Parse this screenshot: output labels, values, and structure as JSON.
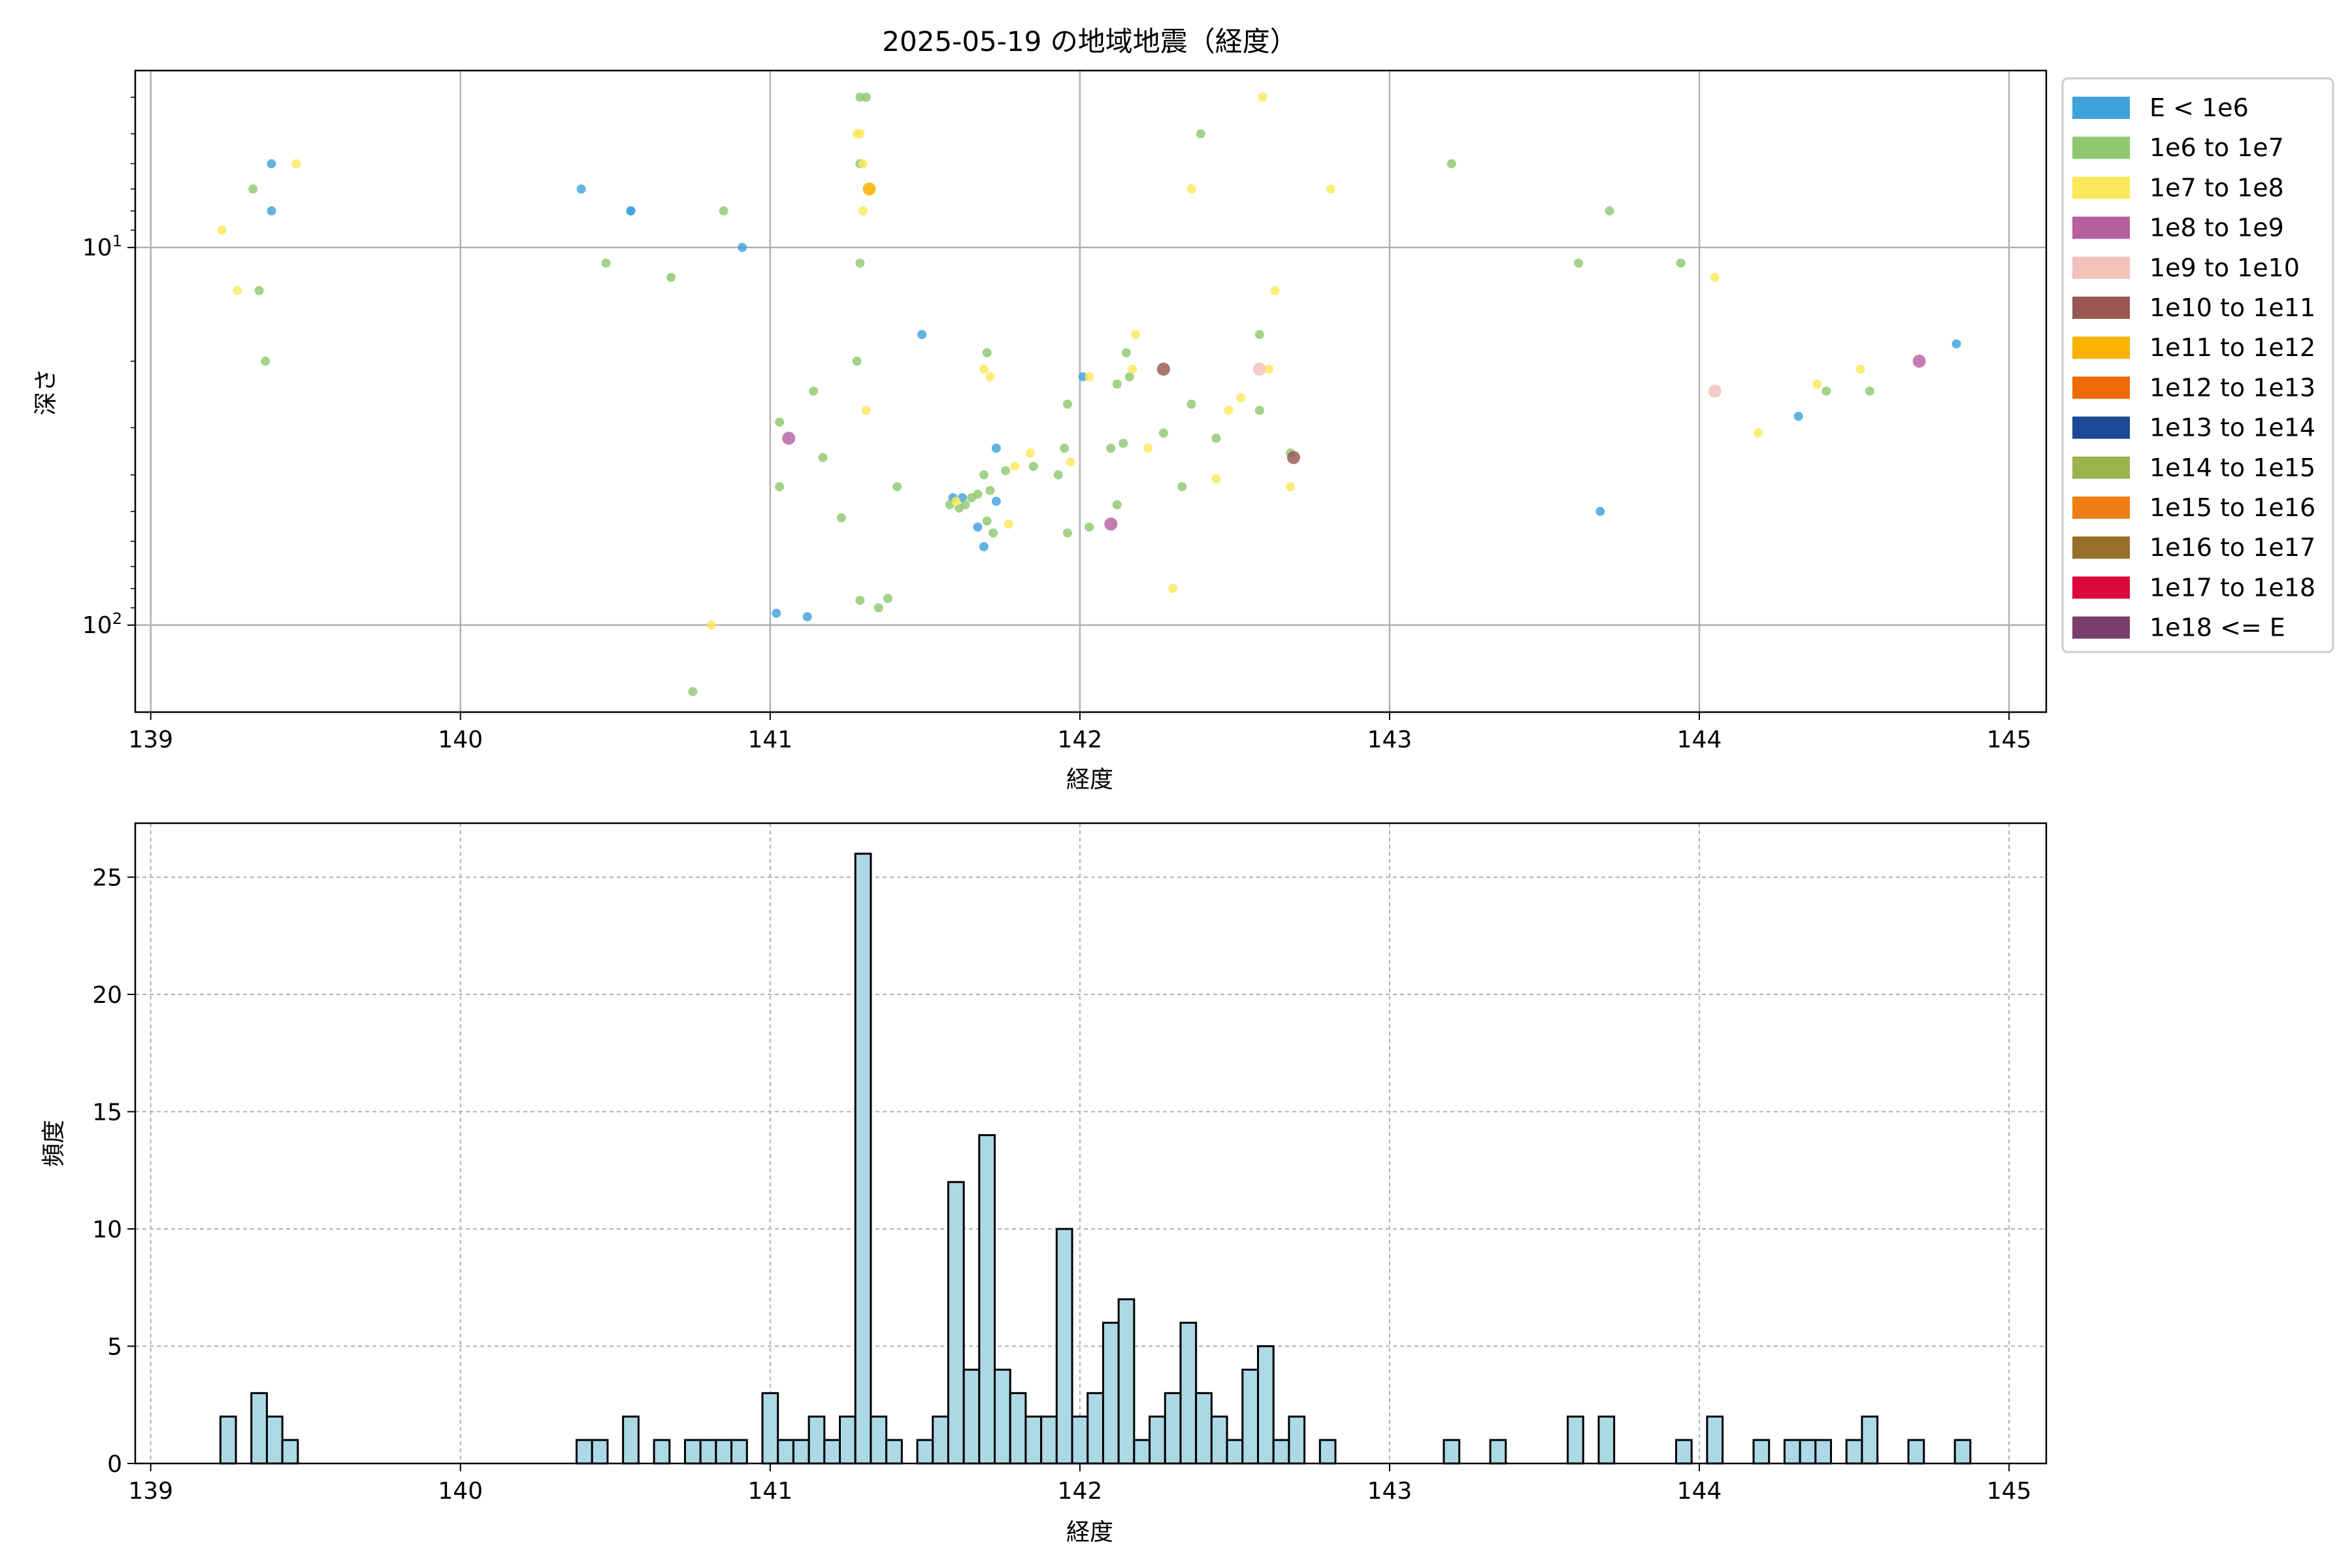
{
  "title": "2025-05-19 の地域地震（経度）",
  "legend": {
    "placement": "right-outside",
    "entries": [
      {
        "label": "E < 1e6",
        "color": "#3fa2db"
      },
      {
        "label": "1e6 to 1e7",
        "color": "#8fc870"
      },
      {
        "label": "1e7 to 1e8",
        "color": "#fbe85a"
      },
      {
        "label": "1e8 to 1e9",
        "color": "#b6609f"
      },
      {
        "label": "1e9 to 1e10",
        "color": "#f4c1bb"
      },
      {
        "label": "1e10 to 1e11",
        "color": "#985750"
      },
      {
        "label": "1e11 to 1e12",
        "color": "#f7b202"
      },
      {
        "label": "1e12 to 1e13",
        "color": "#ee6a0a"
      },
      {
        "label": "1e13 to 1e14",
        "color": "#1c4896"
      },
      {
        "label": "1e14 to 1e15",
        "color": "#9db14f"
      },
      {
        "label": "1e15 to 1e16",
        "color": "#ef7d13"
      },
      {
        "label": "1e16 to 1e17",
        "color": "#976f2b"
      },
      {
        "label": "1e17 to 1e18",
        "color": "#dc0a3c"
      },
      {
        "label": "1e18 <= E",
        "color": "#7a3f6d"
      }
    ]
  },
  "chart_data": [
    {
      "type": "scatter",
      "xlabel": "経度",
      "ylabel": "深さ",
      "xlim": [
        138.95,
        145.12
      ],
      "ylim": [
        170,
        3.4
      ],
      "yscale": "log",
      "y_inverted": true,
      "grid": true,
      "x_ticks": [
        "139",
        "140",
        "141",
        "142",
        "143",
        "144",
        "145"
      ],
      "y_ticks": [
        {
          "value": 10,
          "label": "10^1"
        },
        {
          "value": 100,
          "label": "10^2"
        }
      ],
      "points": [
        {
          "x": 139.39,
          "y": 6.0,
          "cls": 0
        },
        {
          "x": 139.39,
          "y": 8.0,
          "cls": 0
        },
        {
          "x": 140.39,
          "y": 7.0,
          "cls": 0
        },
        {
          "x": 140.55,
          "y": 8.0,
          "cls": 0
        },
        {
          "x": 140.55,
          "y": 8.0,
          "cls": 0
        },
        {
          "x": 140.91,
          "y": 10.0,
          "cls": 0
        },
        {
          "x": 141.02,
          "y": 93.0,
          "cls": 0
        },
        {
          "x": 141.12,
          "y": 95.0,
          "cls": 0
        },
        {
          "x": 141.49,
          "y": 17.0,
          "cls": 0
        },
        {
          "x": 141.59,
          "y": 46.0,
          "cls": 0
        },
        {
          "x": 141.62,
          "y": 46.0,
          "cls": 0
        },
        {
          "x": 141.67,
          "y": 55.0,
          "cls": 0
        },
        {
          "x": 141.69,
          "y": 62.0,
          "cls": 0
        },
        {
          "x": 141.73,
          "y": 34.0,
          "cls": 0
        },
        {
          "x": 141.73,
          "y": 47.0,
          "cls": 0
        },
        {
          "x": 142.01,
          "y": 22.0,
          "cls": 0
        },
        {
          "x": 143.68,
          "y": 50.0,
          "cls": 0
        },
        {
          "x": 144.32,
          "y": 28.0,
          "cls": 0
        },
        {
          "x": 144.83,
          "y": 18.0,
          "cls": 0
        },
        {
          "x": 139.33,
          "y": 7.0,
          "cls": 1
        },
        {
          "x": 139.35,
          "y": 13.0,
          "cls": 1
        },
        {
          "x": 139.37,
          "y": 20.0,
          "cls": 1
        },
        {
          "x": 140.47,
          "y": 11.0,
          "cls": 1
        },
        {
          "x": 140.68,
          "y": 12.0,
          "cls": 1
        },
        {
          "x": 140.75,
          "y": 150.0,
          "cls": 1
        },
        {
          "x": 140.85,
          "y": 8.0,
          "cls": 1
        },
        {
          "x": 141.03,
          "y": 29.0,
          "cls": 1
        },
        {
          "x": 141.03,
          "y": 43.0,
          "cls": 1
        },
        {
          "x": 141.14,
          "y": 24.0,
          "cls": 1
        },
        {
          "x": 141.17,
          "y": 36.0,
          "cls": 1
        },
        {
          "x": 141.23,
          "y": 52.0,
          "cls": 1
        },
        {
          "x": 141.28,
          "y": 20.0,
          "cls": 1
        },
        {
          "x": 141.29,
          "y": 4.0,
          "cls": 1
        },
        {
          "x": 141.29,
          "y": 6.0,
          "cls": 1
        },
        {
          "x": 141.29,
          "y": 11.0,
          "cls": 1
        },
        {
          "x": 141.29,
          "y": 86.0,
          "cls": 1
        },
        {
          "x": 141.31,
          "y": 4.0,
          "cls": 1
        },
        {
          "x": 141.35,
          "y": 90.0,
          "cls": 1
        },
        {
          "x": 141.38,
          "y": 85.0,
          "cls": 1
        },
        {
          "x": 141.41,
          "y": 43.0,
          "cls": 1
        },
        {
          "x": 141.58,
          "y": 48.0,
          "cls": 1
        },
        {
          "x": 141.61,
          "y": 49.0,
          "cls": 1
        },
        {
          "x": 141.63,
          "y": 48.0,
          "cls": 1
        },
        {
          "x": 141.65,
          "y": 46.0,
          "cls": 1
        },
        {
          "x": 141.67,
          "y": 45.0,
          "cls": 1
        },
        {
          "x": 141.69,
          "y": 40.0,
          "cls": 1
        },
        {
          "x": 141.7,
          "y": 19.0,
          "cls": 1
        },
        {
          "x": 141.7,
          "y": 53.0,
          "cls": 1
        },
        {
          "x": 141.71,
          "y": 44.0,
          "cls": 1
        },
        {
          "x": 141.72,
          "y": 57.0,
          "cls": 1
        },
        {
          "x": 141.76,
          "y": 39.0,
          "cls": 1
        },
        {
          "x": 141.85,
          "y": 38.0,
          "cls": 1
        },
        {
          "x": 141.93,
          "y": 40.0,
          "cls": 1
        },
        {
          "x": 141.95,
          "y": 34.0,
          "cls": 1
        },
        {
          "x": 141.96,
          "y": 26.0,
          "cls": 1
        },
        {
          "x": 141.96,
          "y": 57.0,
          "cls": 1
        },
        {
          "x": 142.03,
          "y": 55.0,
          "cls": 1
        },
        {
          "x": 142.1,
          "y": 34.0,
          "cls": 1
        },
        {
          "x": 142.12,
          "y": 23.0,
          "cls": 1
        },
        {
          "x": 142.15,
          "y": 19.0,
          "cls": 1
        },
        {
          "x": 142.16,
          "y": 22.0,
          "cls": 1
        },
        {
          "x": 142.12,
          "y": 48.0,
          "cls": 1
        },
        {
          "x": 142.14,
          "y": 33.0,
          "cls": 1
        },
        {
          "x": 142.27,
          "y": 31.0,
          "cls": 1
        },
        {
          "x": 142.33,
          "y": 43.0,
          "cls": 1
        },
        {
          "x": 142.36,
          "y": 26.0,
          "cls": 1
        },
        {
          "x": 142.39,
          "y": 5.0,
          "cls": 1
        },
        {
          "x": 142.44,
          "y": 32.0,
          "cls": 1
        },
        {
          "x": 142.58,
          "y": 17.0,
          "cls": 1
        },
        {
          "x": 142.58,
          "y": 27.0,
          "cls": 1
        },
        {
          "x": 142.68,
          "y": 35.0,
          "cls": 1
        },
        {
          "x": 143.2,
          "y": 6.0,
          "cls": 1
        },
        {
          "x": 143.61,
          "y": 11.0,
          "cls": 1
        },
        {
          "x": 143.71,
          "y": 8.0,
          "cls": 1
        },
        {
          "x": 143.94,
          "y": 11.0,
          "cls": 1
        },
        {
          "x": 144.41,
          "y": 24.0,
          "cls": 1
        },
        {
          "x": 144.55,
          "y": 24.0,
          "cls": 1
        },
        {
          "x": 139.23,
          "y": 9.0,
          "cls": 2
        },
        {
          "x": 139.28,
          "y": 13.0,
          "cls": 2
        },
        {
          "x": 139.47,
          "y": 6.0,
          "cls": 2
        },
        {
          "x": 140.81,
          "y": 100.0,
          "cls": 2
        },
        {
          "x": 141.28,
          "y": 5.0,
          "cls": 2
        },
        {
          "x": 141.29,
          "y": 5.0,
          "cls": 2
        },
        {
          "x": 141.3,
          "y": 8.0,
          "cls": 2
        },
        {
          "x": 141.3,
          "y": 6.0,
          "cls": 2
        },
        {
          "x": 141.31,
          "y": 27.0,
          "cls": 2
        },
        {
          "x": 141.32,
          "y": 7.0,
          "cls": 2
        },
        {
          "x": 141.6,
          "y": 47.0,
          "cls": 2
        },
        {
          "x": 141.69,
          "y": 21.0,
          "cls": 2
        },
        {
          "x": 141.71,
          "y": 22.0,
          "cls": 2
        },
        {
          "x": 141.77,
          "y": 54.0,
          "cls": 2
        },
        {
          "x": 141.79,
          "y": 38.0,
          "cls": 2
        },
        {
          "x": 141.84,
          "y": 35.0,
          "cls": 2
        },
        {
          "x": 141.97,
          "y": 37.0,
          "cls": 2
        },
        {
          "x": 142.03,
          "y": 22.0,
          "cls": 2
        },
        {
          "x": 142.17,
          "y": 21.0,
          "cls": 2
        },
        {
          "x": 142.18,
          "y": 17.0,
          "cls": 2
        },
        {
          "x": 142.22,
          "y": 34.0,
          "cls": 2
        },
        {
          "x": 142.3,
          "y": 80.0,
          "cls": 2
        },
        {
          "x": 142.36,
          "y": 7.0,
          "cls": 2
        },
        {
          "x": 142.44,
          "y": 41.0,
          "cls": 2
        },
        {
          "x": 142.48,
          "y": 27.0,
          "cls": 2
        },
        {
          "x": 142.52,
          "y": 25.0,
          "cls": 2
        },
        {
          "x": 142.61,
          "y": 21.0,
          "cls": 2
        },
        {
          "x": 142.63,
          "y": 13.0,
          "cls": 2
        },
        {
          "x": 142.68,
          "y": 43.0,
          "cls": 2
        },
        {
          "x": 142.59,
          "y": 4.0,
          "cls": 2
        },
        {
          "x": 142.81,
          "y": 7.0,
          "cls": 2
        },
        {
          "x": 144.05,
          "y": 12.0,
          "cls": 2
        },
        {
          "x": 144.19,
          "y": 31.0,
          "cls": 2
        },
        {
          "x": 144.38,
          "y": 23.0,
          "cls": 2
        },
        {
          "x": 144.52,
          "y": 21.0,
          "cls": 2
        },
        {
          "x": 141.06,
          "y": 32.0,
          "cls": 3
        },
        {
          "x": 142.1,
          "y": 54.0,
          "cls": 3
        },
        {
          "x": 144.71,
          "y": 20.0,
          "cls": 3
        },
        {
          "x": 142.58,
          "y": 21.0,
          "cls": 4
        },
        {
          "x": 144.05,
          "y": 24.0,
          "cls": 4
        },
        {
          "x": 142.27,
          "y": 21.0,
          "cls": 5
        },
        {
          "x": 142.69,
          "y": 36.0,
          "cls": 5
        },
        {
          "x": 141.32,
          "y": 7.0,
          "cls": 6
        }
      ]
    },
    {
      "type": "bar",
      "subtype": "histogram",
      "xlabel": "経度",
      "ylabel": "頻度",
      "xlim": [
        138.95,
        145.12
      ],
      "ylim": [
        0,
        27.3
      ],
      "grid": true,
      "x_ticks": [
        "139",
        "140",
        "141",
        "142",
        "143",
        "144",
        "145"
      ],
      "y_ticks": [
        "0",
        "5",
        "10",
        "15",
        "20",
        "25"
      ],
      "bar_color": "#add8e6",
      "bar_edge_color": "#000000",
      "bin_width": 0.05,
      "bins": [
        {
          "x": 139.25,
          "v": 2
        },
        {
          "x": 139.35,
          "v": 3
        },
        {
          "x": 139.4,
          "v": 2
        },
        {
          "x": 139.45,
          "v": 1
        },
        {
          "x": 140.4,
          "v": 1
        },
        {
          "x": 140.45,
          "v": 1
        },
        {
          "x": 140.55,
          "v": 2
        },
        {
          "x": 140.65,
          "v": 1
        },
        {
          "x": 140.75,
          "v": 1
        },
        {
          "x": 140.8,
          "v": 1
        },
        {
          "x": 140.85,
          "v": 1
        },
        {
          "x": 140.9,
          "v": 1
        },
        {
          "x": 141.0,
          "v": 3
        },
        {
          "x": 141.05,
          "v": 1
        },
        {
          "x": 141.1,
          "v": 1
        },
        {
          "x": 141.15,
          "v": 2
        },
        {
          "x": 141.2,
          "v": 1
        },
        {
          "x": 141.25,
          "v": 2
        },
        {
          "x": 141.3,
          "v": 26
        },
        {
          "x": 141.35,
          "v": 2
        },
        {
          "x": 141.4,
          "v": 1
        },
        {
          "x": 141.5,
          "v": 1
        },
        {
          "x": 141.55,
          "v": 2
        },
        {
          "x": 141.6,
          "v": 12
        },
        {
          "x": 141.65,
          "v": 4
        },
        {
          "x": 141.7,
          "v": 14
        },
        {
          "x": 141.75,
          "v": 4
        },
        {
          "x": 141.8,
          "v": 3
        },
        {
          "x": 141.85,
          "v": 2
        },
        {
          "x": 141.9,
          "v": 2
        },
        {
          "x": 141.95,
          "v": 10
        },
        {
          "x": 142.0,
          "v": 2
        },
        {
          "x": 142.05,
          "v": 3
        },
        {
          "x": 142.1,
          "v": 6
        },
        {
          "x": 142.15,
          "v": 7
        },
        {
          "x": 142.2,
          "v": 1
        },
        {
          "x": 142.25,
          "v": 2
        },
        {
          "x": 142.3,
          "v": 3
        },
        {
          "x": 142.35,
          "v": 6
        },
        {
          "x": 142.4,
          "v": 3
        },
        {
          "x": 142.45,
          "v": 2
        },
        {
          "x": 142.5,
          "v": 1
        },
        {
          "x": 142.55,
          "v": 4
        },
        {
          "x": 142.6,
          "v": 5
        },
        {
          "x": 142.65,
          "v": 1
        },
        {
          "x": 142.7,
          "v": 2
        },
        {
          "x": 142.8,
          "v": 1
        },
        {
          "x": 143.2,
          "v": 1
        },
        {
          "x": 143.35,
          "v": 1
        },
        {
          "x": 143.6,
          "v": 2
        },
        {
          "x": 143.7,
          "v": 2
        },
        {
          "x": 143.95,
          "v": 1
        },
        {
          "x": 144.05,
          "v": 2
        },
        {
          "x": 144.2,
          "v": 1
        },
        {
          "x": 144.3,
          "v": 1
        },
        {
          "x": 144.35,
          "v": 1
        },
        {
          "x": 144.4,
          "v": 1
        },
        {
          "x": 144.5,
          "v": 1
        },
        {
          "x": 144.55,
          "v": 2
        },
        {
          "x": 144.7,
          "v": 1
        },
        {
          "x": 144.85,
          "v": 1
        }
      ]
    }
  ]
}
